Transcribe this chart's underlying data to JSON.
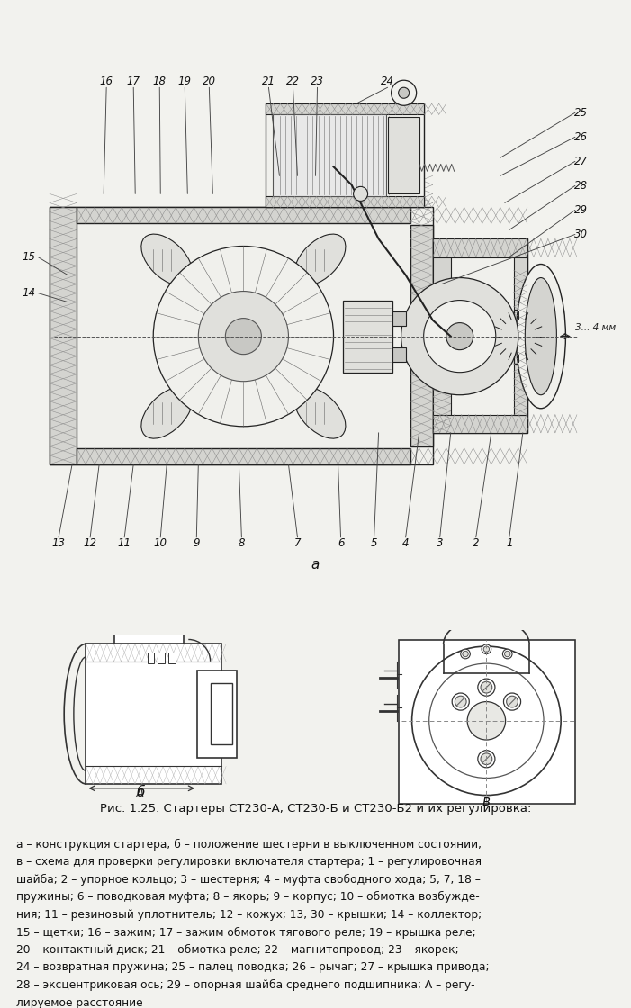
{
  "title": "Рис. 1.25. Стартеры СТ230-А, СТ230-Б и СТ230-Б2 и их регулировка:",
  "caption_lines": [
    "а – конструкция стартера; б – положение шестерни в выключенном состоянии;",
    "в – схема для проверки регулировки включателя стартера; 1 – регулировочная",
    "шайба; 2 – упорное кольцо; 3 – шестерня; 4 – муфта свободного хода; 5, 7, 18 –",
    "пружины; 6 – поводковая муфта; 8 – якорь; 9 – корпус; 10 – обмотка возбужде-",
    "ния; 11 – резиновый уплотнитель; 12 – кожух; 13, 30 – крышки; 14 – коллектор;",
    "15 – щетки; 16 – зажим; 17 – зажим обмоток тягового реле; 19 – крышка реле;",
    "20 – контактный диск; 21 – обмотка реле; 22 – магнитопровод; 23 – якорек;",
    "24 – возвратная пружина; 25 – палец поводка; 26 – рычаг; 27 – крышка привода;",
    "28 – эксцентриковая ось; 29 – опорная шайба среднего подшипника; А – регу-",
    "лируемое расстояние"
  ],
  "label_a": "а",
  "label_b": "б",
  "label_v": "в",
  "annotation_3_4mm": "3... 4 мм",
  "background_color": "#f2f2ee",
  "image_bg": "#ffffff",
  "top_labels": [
    "16",
    "17",
    "18",
    "19",
    "20",
    "21",
    "22",
    "23",
    "24"
  ],
  "right_labels": [
    "25",
    "26",
    "27",
    "28",
    "29",
    "30"
  ],
  "bottom_labels": [
    "13",
    "12",
    "11",
    "10",
    "9",
    "8",
    "7",
    "6",
    "5",
    "4",
    "3",
    "2",
    "1"
  ],
  "left_labels": [
    "15",
    "14"
  ]
}
